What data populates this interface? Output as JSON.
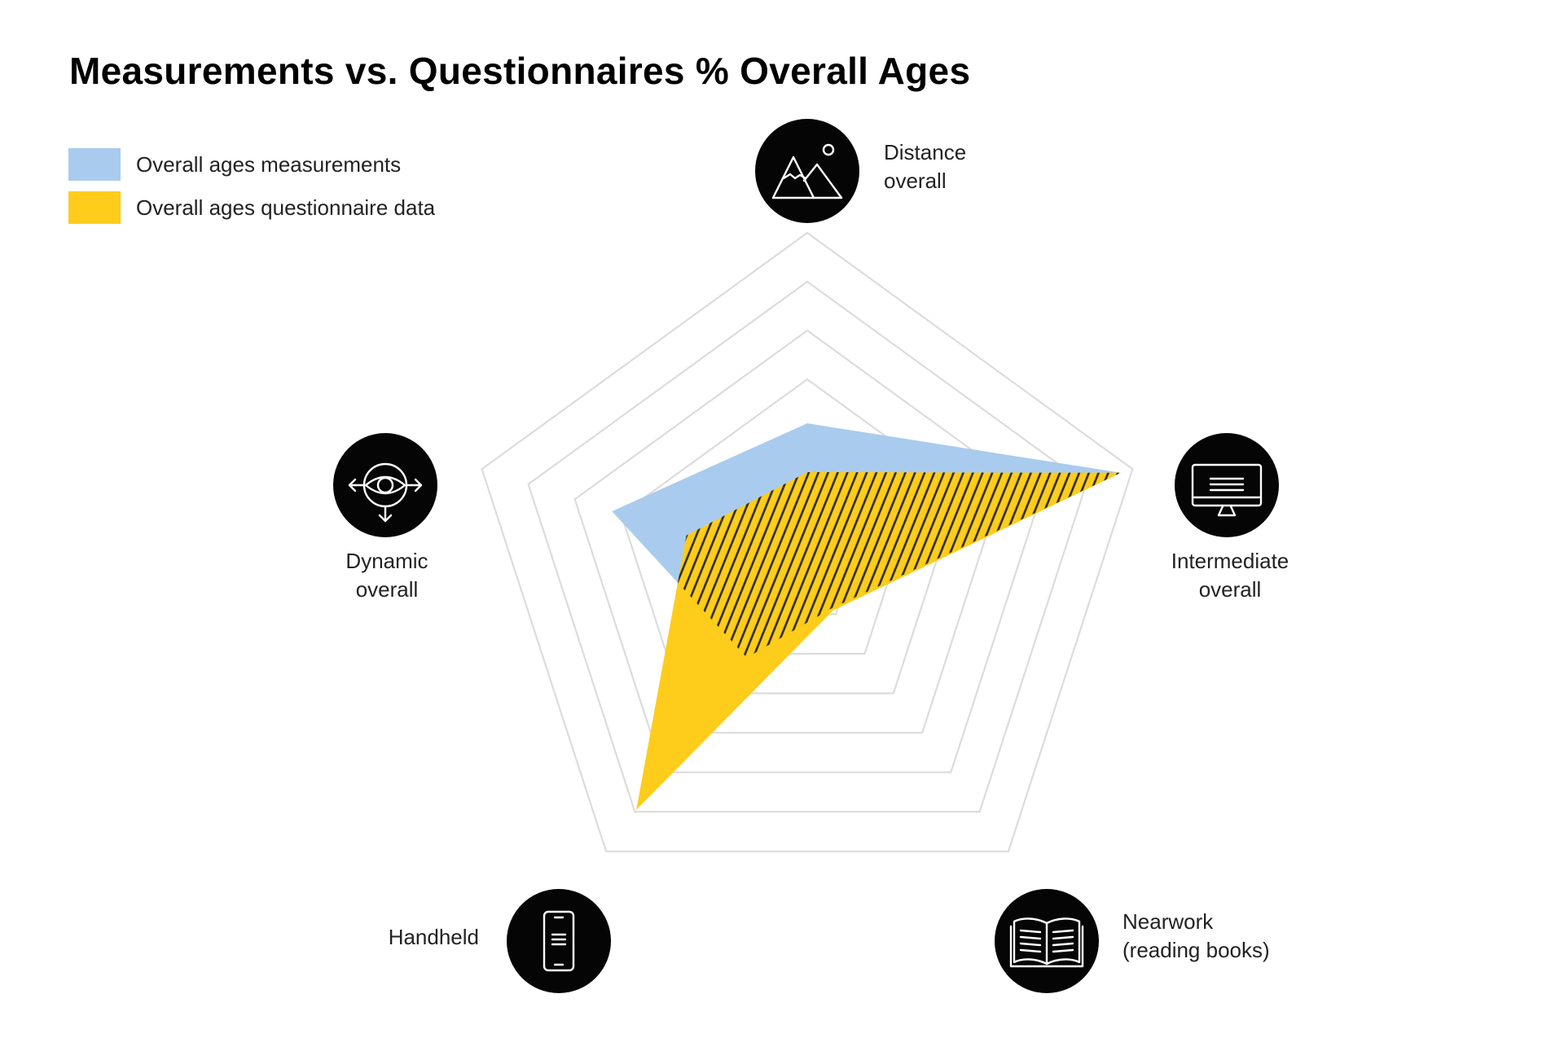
{
  "chart_data": {
    "type": "radar",
    "title": "Measurements vs. Questionnaires % Overall Ages",
    "axes": [
      {
        "key": "distance",
        "label_lines": [
          "Distance",
          "overall"
        ],
        "icon": "mountain-icon"
      },
      {
        "key": "intermediate",
        "label_lines": [
          "Intermediate",
          "overall"
        ],
        "icon": "monitor-icon"
      },
      {
        "key": "nearwork",
        "label_lines": [
          "Nearwork",
          "(reading books)"
        ],
        "icon": "open-book-icon"
      },
      {
        "key": "handheld",
        "label_lines": [
          "Handheld"
        ],
        "icon": "smartphone-icon"
      },
      {
        "key": "dynamic",
        "label_lines": [
          "Dynamic",
          "overall"
        ],
        "icon": "eye-arrows-icon"
      }
    ],
    "rings": 7,
    "range": [
      0,
      7
    ],
    "series": [
      {
        "name": "Overall ages measurements",
        "color": "#a9cbee",
        "values": [
          3.1,
          6.75,
          0.85,
          2.1,
          4.2
        ]
      },
      {
        "name": "Overall ages questionnaire data",
        "color": "#fecc1a",
        "values": [
          2.1,
          6.75,
          0.9,
          5.95,
          2.6
        ]
      }
    ],
    "overlap_pattern": "hatched",
    "grid": true,
    "legend_position": "top-left"
  }
}
